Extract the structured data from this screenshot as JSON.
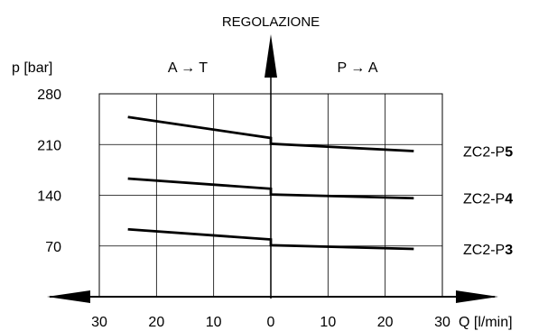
{
  "chart_data": {
    "type": "line",
    "title": "REGOLAZIONE",
    "ylabel": "p [bar]",
    "xlabel": "Q [l/min]",
    "regions": [
      {
        "name": "A → T"
      },
      {
        "name": "P → A"
      }
    ],
    "x_ticks": [
      "30",
      "20",
      "10",
      "0",
      "10",
      "20",
      "30"
    ],
    "y_ticks": [
      "280",
      "210",
      "140",
      "70"
    ],
    "xlim": [
      -30,
      30
    ],
    "ylim": [
      0,
      280
    ],
    "grid": true,
    "series": [
      {
        "prefix": "ZC2-P",
        "suffix": "5",
        "points": [
          [
            -25,
            248
          ],
          [
            0,
            219
          ],
          [
            0,
            211
          ],
          [
            25,
            201
          ]
        ]
      },
      {
        "prefix": "ZC2-P",
        "suffix": "4",
        "points": [
          [
            -25,
            163
          ],
          [
            0,
            149
          ],
          [
            0,
            141
          ],
          [
            25,
            136
          ]
        ]
      },
      {
        "prefix": "ZC2-P",
        "suffix": "3",
        "points": [
          [
            -25,
            93
          ],
          [
            0,
            79
          ],
          [
            0,
            71
          ],
          [
            25,
            66
          ]
        ]
      }
    ]
  }
}
